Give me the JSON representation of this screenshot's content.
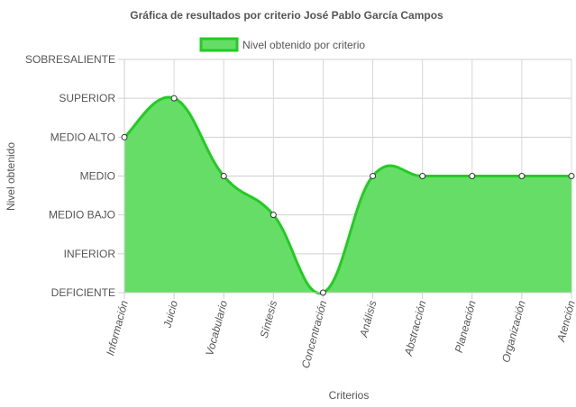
{
  "chart_data": {
    "type": "area",
    "title": "Gráfica de resultados por criterio José Pablo García Campos",
    "xlabel": "Criterios",
    "ylabel": "Nivel obtenido",
    "y_levels": [
      "DEFICIENTE",
      "INFERIOR",
      "MEDIO BAJO",
      "MEDIO",
      "MEDIO ALTO",
      "SUPERIOR",
      "SOBRESALIENTE"
    ],
    "categories": [
      "Información",
      "Juicio",
      "Vocabulario",
      "Síntesis",
      "Concentración",
      "Análisis",
      "Abstracción",
      "Planeación",
      "Organización",
      "Atención"
    ],
    "series": [
      {
        "name": "Nivel obtenido por criterio",
        "values": [
          "MEDIO ALTO",
          "SUPERIOR",
          "MEDIO",
          "MEDIO BAJO",
          "DEFICIENTE",
          "MEDIO",
          "MEDIO",
          "MEDIO",
          "MEDIO",
          "MEDIO"
        ],
        "fill_color": "#66dd66",
        "line_color": "#22cc22"
      }
    ],
    "grid": true,
    "legend_position": "top"
  }
}
